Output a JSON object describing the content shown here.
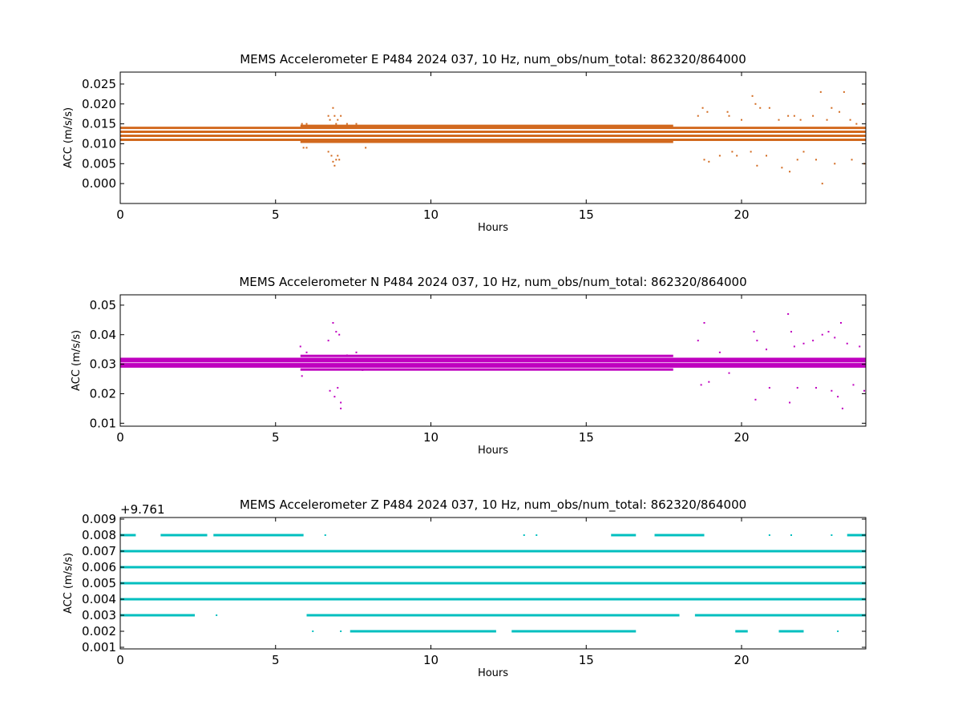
{
  "figure": {
    "background": "#ffffff"
  },
  "chart_data": [
    {
      "type": "scatter",
      "title": "MEMS Accelerometer E P484 2024 037, 10 Hz, num_obs/num_total: 862320/864000",
      "xlabel": "Hours",
      "ylabel": "ACC (m/s/s)",
      "xlim": [
        0,
        24
      ],
      "ylim": [
        -0.005,
        0.028
      ],
      "xticks": [
        0,
        5,
        10,
        15,
        20
      ],
      "xtick_labels": [
        "0",
        "5",
        "10",
        "15",
        "20"
      ],
      "yticks": [
        0.0,
        0.005,
        0.01,
        0.015,
        0.02,
        0.025
      ],
      "ytick_labels": [
        "0.000",
        "0.005",
        "0.010",
        "0.015",
        "0.020",
        "0.025"
      ],
      "offset_label": "",
      "color": "#D2691E",
      "grid": false,
      "bands": [
        {
          "y": 0.014,
          "segments": [
            [
              0,
              24
            ]
          ]
        },
        {
          "y": 0.013,
          "segments": [
            [
              0,
              24
            ]
          ]
        },
        {
          "y": 0.012,
          "segments": [
            [
              0,
              24
            ]
          ]
        },
        {
          "y": 0.011,
          "segments": [
            [
              0,
              24
            ]
          ]
        },
        {
          "y": 0.0105,
          "segments": [
            [
              5.8,
              17.8
            ]
          ]
        },
        {
          "y": 0.0145,
          "segments": [
            [
              5.8,
              17.8
            ]
          ]
        }
      ],
      "scatter": [
        [
          5.85,
          0.015
        ],
        [
          6.0,
          0.015
        ],
        [
          5.9,
          0.009
        ],
        [
          6.0,
          0.009
        ],
        [
          6.7,
          0.017
        ],
        [
          6.75,
          0.016
        ],
        [
          6.85,
          0.019
        ],
        [
          6.9,
          0.017
        ],
        [
          6.95,
          0.015
        ],
        [
          7.0,
          0.016
        ],
        [
          7.1,
          0.017
        ],
        [
          6.7,
          0.008
        ],
        [
          6.8,
          0.007
        ],
        [
          6.85,
          0.0055
        ],
        [
          6.9,
          0.0045
        ],
        [
          6.95,
          0.006
        ],
        [
          7.0,
          0.007
        ],
        [
          7.05,
          0.006
        ],
        [
          7.3,
          0.015
        ],
        [
          7.6,
          0.015
        ],
        [
          7.9,
          0.009
        ],
        [
          18.6,
          0.017
        ],
        [
          18.75,
          0.019
        ],
        [
          18.9,
          0.018
        ],
        [
          18.8,
          0.006
        ],
        [
          18.95,
          0.0055
        ],
        [
          19.3,
          0.007
        ],
        [
          19.55,
          0.018
        ],
        [
          19.6,
          0.017
        ],
        [
          19.7,
          0.008
        ],
        [
          19.85,
          0.007
        ],
        [
          20.0,
          0.016
        ],
        [
          20.35,
          0.022
        ],
        [
          20.45,
          0.02
        ],
        [
          20.5,
          0.0045
        ],
        [
          20.3,
          0.008
        ],
        [
          20.6,
          0.019
        ],
        [
          20.9,
          0.019
        ],
        [
          20.8,
          0.007
        ],
        [
          21.2,
          0.016
        ],
        [
          21.3,
          0.004
        ],
        [
          21.5,
          0.017
        ],
        [
          21.55,
          0.003
        ],
        [
          21.7,
          0.017
        ],
        [
          21.8,
          0.006
        ],
        [
          21.9,
          0.016
        ],
        [
          22.0,
          0.008
        ],
        [
          22.3,
          0.017
        ],
        [
          22.4,
          0.006
        ],
        [
          22.55,
          0.023
        ],
        [
          22.6,
          0.0
        ],
        [
          22.75,
          0.016
        ],
        [
          22.9,
          0.019
        ],
        [
          23.0,
          0.005
        ],
        [
          23.15,
          0.018
        ],
        [
          23.3,
          0.023
        ],
        [
          23.5,
          0.016
        ],
        [
          23.55,
          0.006
        ],
        [
          23.7,
          0.015
        ],
        [
          23.9,
          0.02
        ],
        [
          23.95,
          0.005
        ]
      ]
    },
    {
      "type": "scatter",
      "title": "MEMS Accelerometer N P484 2024 037, 10 Hz, num_obs/num_total: 862320/864000",
      "xlabel": "Hours",
      "ylabel": "ACC (m/s/s)",
      "xlim": [
        0,
        24
      ],
      "ylim": [
        0.009,
        0.0535
      ],
      "xticks": [
        0,
        5,
        10,
        15,
        20
      ],
      "xtick_labels": [
        "0",
        "5",
        "10",
        "15",
        "20"
      ],
      "yticks": [
        0.01,
        0.02,
        0.03,
        0.04,
        0.05
      ],
      "ytick_labels": [
        "0.01",
        "0.02",
        "0.03",
        "0.04",
        "0.05"
      ],
      "offset_label": "",
      "color": "#BF00BF",
      "grid": false,
      "bands": [
        {
          "y": 0.031,
          "segments": [
            [
              0,
              24
            ]
          ]
        },
        {
          "y": 0.03,
          "segments": [
            [
              0,
              24
            ]
          ]
        },
        {
          "y": 0.0292,
          "segments": [
            [
              0,
              24
            ]
          ]
        },
        {
          "y": 0.0318,
          "segments": [
            [
              0,
              24
            ]
          ]
        },
        {
          "y": 0.0282,
          "segments": [
            [
              5.8,
              17.8
            ]
          ]
        },
        {
          "y": 0.0328,
          "segments": [
            [
              5.8,
              17.8
            ]
          ]
        }
      ],
      "scatter": [
        [
          5.8,
          0.036
        ],
        [
          5.85,
          0.026
        ],
        [
          6.0,
          0.034
        ],
        [
          6.7,
          0.038
        ],
        [
          6.75,
          0.021
        ],
        [
          6.85,
          0.044
        ],
        [
          6.9,
          0.019
        ],
        [
          6.95,
          0.041
        ],
        [
          7.0,
          0.022
        ],
        [
          7.05,
          0.04
        ],
        [
          7.1,
          0.015
        ],
        [
          7.1,
          0.017
        ],
        [
          7.3,
          0.033
        ],
        [
          7.6,
          0.034
        ],
        [
          7.8,
          0.028
        ],
        [
          18.6,
          0.038
        ],
        [
          18.7,
          0.023
        ],
        [
          18.8,
          0.044
        ],
        [
          18.95,
          0.024
        ],
        [
          19.3,
          0.034
        ],
        [
          19.6,
          0.027
        ],
        [
          20.4,
          0.041
        ],
        [
          20.45,
          0.018
        ],
        [
          20.5,
          0.038
        ],
        [
          20.8,
          0.035
        ],
        [
          20.9,
          0.022
        ],
        [
          21.5,
          0.047
        ],
        [
          21.55,
          0.017
        ],
        [
          21.6,
          0.041
        ],
        [
          21.7,
          0.036
        ],
        [
          21.8,
          0.022
        ],
        [
          22.0,
          0.037
        ],
        [
          22.3,
          0.038
        ],
        [
          22.4,
          0.022
        ],
        [
          22.6,
          0.04
        ],
        [
          22.8,
          0.041
        ],
        [
          22.9,
          0.021
        ],
        [
          23.0,
          0.039
        ],
        [
          23.1,
          0.019
        ],
        [
          23.2,
          0.044
        ],
        [
          23.25,
          0.015
        ],
        [
          23.4,
          0.037
        ],
        [
          23.6,
          0.023
        ],
        [
          23.8,
          0.036
        ],
        [
          23.95,
          0.021
        ]
      ]
    },
    {
      "type": "scatter",
      "title": "MEMS Accelerometer Z P484 2024 037, 10 Hz, num_obs/num_total: 862320/864000",
      "xlabel": "Hours",
      "ylabel": "ACC (m/s/s)",
      "xlim": [
        0,
        24
      ],
      "ylim": [
        0.0009,
        0.0091
      ],
      "xticks": [
        0,
        5,
        10,
        15,
        20
      ],
      "xtick_labels": [
        "0",
        "5",
        "10",
        "15",
        "20"
      ],
      "yticks": [
        0.001,
        0.002,
        0.003,
        0.004,
        0.005,
        0.006,
        0.007,
        0.008,
        0.009
      ],
      "ytick_labels": [
        "0.001",
        "0.002",
        "0.003",
        "0.004",
        "0.005",
        "0.006",
        "0.007",
        "0.008",
        "0.009"
      ],
      "offset_label": "+9.761",
      "color": "#00BFBF",
      "grid": false,
      "bands": [
        {
          "y": 0.007,
          "segments": [
            [
              0,
              24
            ]
          ]
        },
        {
          "y": 0.006,
          "segments": [
            [
              0,
              24
            ]
          ]
        },
        {
          "y": 0.005,
          "segments": [
            [
              0,
              24
            ]
          ]
        },
        {
          "y": 0.004,
          "segments": [
            [
              0,
              24
            ]
          ]
        },
        {
          "y": 0.003,
          "segments": [
            [
              0,
              2.4
            ],
            [
              6.0,
              18.0
            ],
            [
              18.5,
              24
            ]
          ]
        },
        {
          "y": 0.008,
          "segments": [
            [
              0,
              0.5
            ],
            [
              1.3,
              2.8
            ],
            [
              3.0,
              5.9
            ],
            [
              15.8,
              16.6
            ],
            [
              17.2,
              18.8
            ],
            [
              23.4,
              24
            ]
          ]
        },
        {
          "y": 0.002,
          "segments": [
            [
              7.4,
              12.1
            ],
            [
              12.6,
              16.6
            ],
            [
              19.8,
              20.2
            ],
            [
              21.2,
              22.0
            ]
          ]
        }
      ],
      "scatter": [
        [
          6.6,
          0.008
        ],
        [
          13.0,
          0.008
        ],
        [
          13.4,
          0.008
        ],
        [
          20.9,
          0.008
        ],
        [
          21.6,
          0.008
        ],
        [
          22.9,
          0.008
        ],
        [
          6.2,
          0.002
        ],
        [
          7.1,
          0.002
        ],
        [
          23.1,
          0.002
        ],
        [
          3.1,
          0.003
        ],
        [
          2.3,
          0.003
        ]
      ]
    }
  ]
}
